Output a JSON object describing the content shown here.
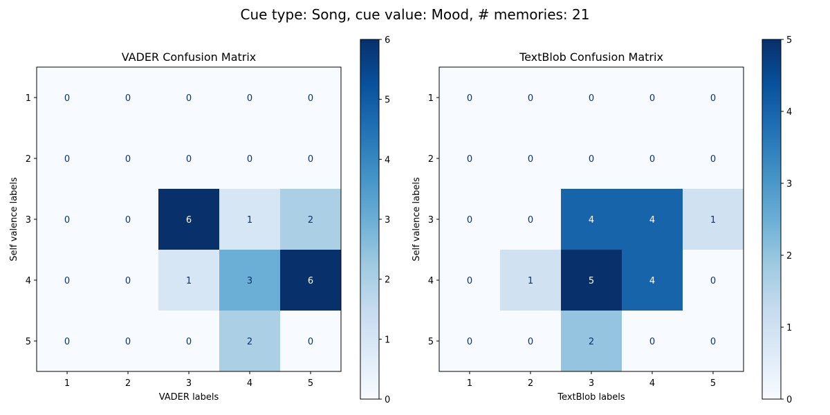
{
  "figure_title": "Cue type: Song, cue value: Mood, # memories: 21",
  "chart_data": [
    {
      "type": "heatmap",
      "title": "VADER Confusion Matrix",
      "xlabel": "VADER labels",
      "ylabel": "Self valence labels",
      "x_ticks": [
        "1",
        "2",
        "3",
        "4",
        "5"
      ],
      "y_ticks": [
        "1",
        "2",
        "3",
        "4",
        "5"
      ],
      "matrix": [
        [
          0,
          0,
          0,
          0,
          0
        ],
        [
          0,
          0,
          0,
          0,
          0
        ],
        [
          0,
          0,
          6,
          1,
          2
        ],
        [
          0,
          0,
          1,
          3,
          6
        ],
        [
          0,
          0,
          0,
          2,
          0
        ]
      ],
      "vmin": 0,
      "vmax": 6,
      "colorbar_ticks": [
        "0",
        "1",
        "2",
        "3",
        "4",
        "5",
        "6"
      ],
      "colormap": "Blues"
    },
    {
      "type": "heatmap",
      "title": "TextBlob Confusion Matrix",
      "xlabel": "TextBlob labels",
      "ylabel": "Self valence labels",
      "x_ticks": [
        "1",
        "2",
        "3",
        "4",
        "5"
      ],
      "y_ticks": [
        "1",
        "2",
        "3",
        "4",
        "5"
      ],
      "matrix": [
        [
          0,
          0,
          0,
          0,
          0
        ],
        [
          0,
          0,
          0,
          0,
          0
        ],
        [
          0,
          0,
          4,
          4,
          1
        ],
        [
          0,
          1,
          5,
          4,
          0
        ],
        [
          0,
          0,
          2,
          0,
          0
        ]
      ],
      "vmin": 0,
      "vmax": 5,
      "colorbar_ticks": [
        "0",
        "1",
        "2",
        "3",
        "4",
        "5"
      ],
      "colormap": "Blues"
    }
  ]
}
